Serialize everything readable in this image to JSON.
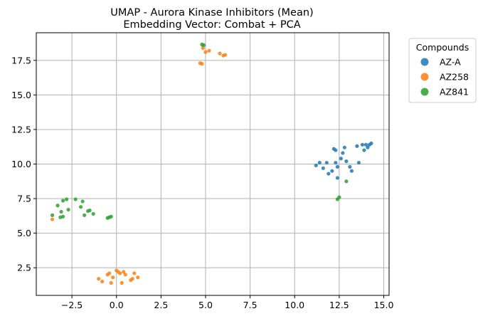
{
  "chart_data": {
    "type": "scatter",
    "title": "UMAP - Aurora Kinase Inhibitors (Mean)",
    "subtitle": "Embedding Vector: Combat + PCA",
    "xlabel": "",
    "ylabel": "",
    "xlim": [
      -4.5,
      15.3
    ],
    "ylim": [
      0.5,
      19.5
    ],
    "xticks": [
      "−2.5",
      "0.0",
      "2.5",
      "5.0",
      "7.5",
      "10.0",
      "12.5",
      "15.0"
    ],
    "xtick_values": [
      -2.5,
      0.0,
      2.5,
      5.0,
      7.5,
      10.0,
      12.5,
      15.0
    ],
    "yticks": [
      "2.5",
      "5.0",
      "7.5",
      "10.0",
      "12.5",
      "15.0",
      "17.5"
    ],
    "ytick_values": [
      2.5,
      5.0,
      7.5,
      10.0,
      12.5,
      15.0,
      17.5
    ],
    "grid": true,
    "legend": {
      "title": "Compounds",
      "placement": "outside-top-right"
    },
    "series": [
      {
        "name": "AZ-A",
        "color": "#1f77b4",
        "points": [
          [
            11.2,
            9.9
          ],
          [
            11.4,
            10.1
          ],
          [
            11.6,
            9.7
          ],
          [
            11.8,
            10.1
          ],
          [
            11.9,
            9.3
          ],
          [
            12.1,
            9.5
          ],
          [
            12.2,
            11.1
          ],
          [
            12.3,
            11.0
          ],
          [
            12.3,
            10.1
          ],
          [
            12.4,
            9.8
          ],
          [
            12.4,
            9.0
          ],
          [
            12.6,
            10.4
          ],
          [
            12.7,
            10.8
          ],
          [
            12.8,
            11.2
          ],
          [
            12.9,
            10.2
          ],
          [
            13.1,
            9.8
          ],
          [
            13.2,
            9.5
          ],
          [
            13.5,
            11.3
          ],
          [
            13.6,
            10.1
          ],
          [
            13.8,
            11.4
          ],
          [
            13.9,
            11.0
          ],
          [
            14.0,
            11.4
          ],
          [
            14.1,
            11.2
          ],
          [
            14.2,
            11.4
          ],
          [
            14.3,
            11.5
          ]
        ]
      },
      {
        "name": "AZ258",
        "color": "#ff7f0e",
        "points": [
          [
            4.7,
            17.3
          ],
          [
            4.8,
            17.25
          ],
          [
            4.85,
            18.4
          ],
          [
            5.0,
            18.1
          ],
          [
            5.2,
            18.2
          ],
          [
            5.8,
            18.0
          ],
          [
            6.0,
            17.85
          ],
          [
            6.1,
            17.9
          ],
          [
            -3.6,
            6.0
          ],
          [
            -1.0,
            1.7
          ],
          [
            -0.8,
            1.5
          ],
          [
            -0.5,
            2.0
          ],
          [
            -0.4,
            2.1
          ],
          [
            -0.3,
            1.4
          ],
          [
            -0.2,
            1.8
          ],
          [
            0.0,
            2.3
          ],
          [
            0.1,
            2.2
          ],
          [
            0.2,
            2.1
          ],
          [
            0.3,
            1.4
          ],
          [
            0.4,
            2.2
          ],
          [
            0.5,
            2.0
          ],
          [
            0.8,
            1.6
          ],
          [
            0.9,
            1.7
          ],
          [
            1.0,
            2.1
          ],
          [
            1.2,
            1.8
          ]
        ]
      },
      {
        "name": "AZ841",
        "color": "#2ca02c",
        "points": [
          [
            4.8,
            18.65
          ],
          [
            4.9,
            18.6
          ],
          [
            12.4,
            7.45
          ],
          [
            12.5,
            7.6
          ],
          [
            12.9,
            8.75
          ],
          [
            -3.6,
            6.3
          ],
          [
            -3.3,
            7.0
          ],
          [
            -3.15,
            6.15
          ],
          [
            -3.1,
            6.55
          ],
          [
            -3.0,
            7.35
          ],
          [
            -3.0,
            6.2
          ],
          [
            -2.8,
            7.45
          ],
          [
            -2.7,
            6.7
          ],
          [
            -2.3,
            7.45
          ],
          [
            -2.0,
            6.9
          ],
          [
            -1.9,
            7.3
          ],
          [
            -1.8,
            6.3
          ],
          [
            -1.6,
            6.6
          ],
          [
            -1.5,
            6.65
          ],
          [
            -1.3,
            6.4
          ],
          [
            -0.5,
            6.1
          ],
          [
            -0.4,
            6.15
          ],
          [
            -0.3,
            6.2
          ]
        ]
      }
    ]
  }
}
